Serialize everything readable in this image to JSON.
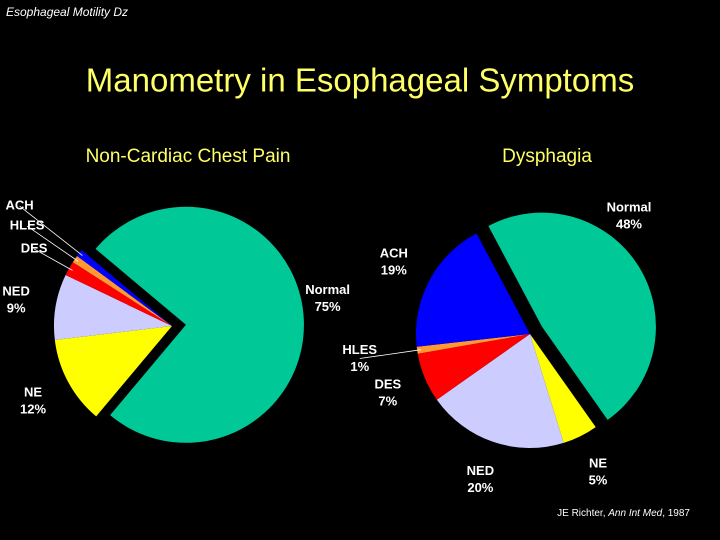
{
  "slide": {
    "header": "Esophageal Motility Dz",
    "title": "Manometry in Esophageal Symptoms",
    "citation": [
      "JE Richter, ",
      "Ann Int Med",
      ", 1987"
    ]
  },
  "chart_data": [
    {
      "type": "pie",
      "title": "Non-Cardiac Chest Pain",
      "categories": [
        "Normal",
        "NE",
        "NED",
        "DES",
        "HLES",
        "ACH"
      ],
      "values": [
        75,
        12,
        9,
        2,
        1,
        1
      ],
      "value_labels": [
        "75%",
        "12%",
        "9%",
        null,
        null,
        null
      ],
      "colors": [
        "#00c896",
        "#ffff00",
        "#ccccff",
        "#ff0000",
        "#ff9933",
        "#0000ff"
      ]
    },
    {
      "type": "pie",
      "title": "Dysphagia",
      "categories": [
        "Normal",
        "NE",
        "NED",
        "DES",
        "HLES",
        "ACH"
      ],
      "values": [
        48,
        5,
        20,
        7,
        1,
        19
      ],
      "value_labels": [
        "48%",
        "5%",
        "20%",
        "7%",
        "1%",
        "19%"
      ],
      "colors": [
        "#00c896",
        "#ffff00",
        "#ccccff",
        "#ff0000",
        "#ff9933",
        "#0000ff"
      ]
    }
  ]
}
